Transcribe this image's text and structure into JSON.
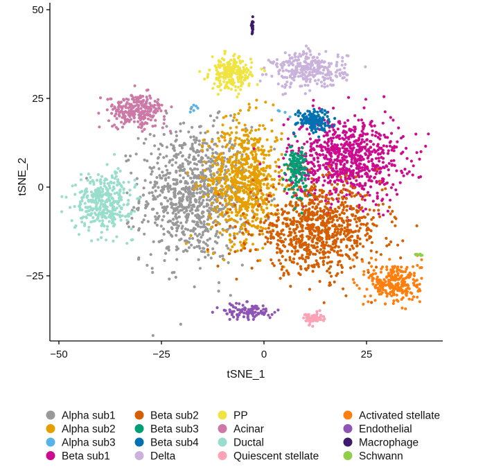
{
  "chart_data": {
    "type": "scatter",
    "title": "",
    "xlabel": "tSNE_1",
    "ylabel": "tSNE_2",
    "xlim": [
      -52,
      44
    ],
    "ylim": [
      -44,
      51
    ],
    "xticks": [
      -50,
      -25,
      0,
      25
    ],
    "yticks": [
      -25,
      0,
      25,
      50
    ],
    "xtick_labels": [
      "−50",
      "−25",
      "0",
      "25"
    ],
    "ytick_labels": [
      "−25",
      "0",
      "25",
      "50"
    ],
    "grid": false,
    "legend_position": "bottom",
    "series": [
      {
        "name": "Alpha sub1",
        "color": "#999999",
        "clusters": [
          {
            "cx": -17,
            "cy": -2,
            "sx": 6.5,
            "sy": 9.5,
            "n": 900
          }
        ]
      },
      {
        "name": "Alpha sub2",
        "color": "#E69F00",
        "clusters": [
          {
            "cx": -4.5,
            "cy": 2,
            "sx": 4.5,
            "sy": 8.5,
            "n": 700
          }
        ]
      },
      {
        "name": "Alpha sub3",
        "color": "#56B4E9",
        "clusters": [
          {
            "cx": -17,
            "cy": 22.5,
            "sx": 0.6,
            "sy": 0.6,
            "n": 6
          },
          {
            "cx": 4.5,
            "cy": 21,
            "sx": 1,
            "sy": 1,
            "n": 4
          }
        ]
      },
      {
        "name": "Beta sub1",
        "color": "#CC0B8E",
        "clusters": [
          {
            "cx": 20,
            "cy": 8,
            "sx": 7,
            "sy": 6,
            "n": 800
          }
        ]
      },
      {
        "name": "Beta sub2",
        "color": "#D55E00",
        "clusters": [
          {
            "cx": 13,
            "cy": -12,
            "sx": 8,
            "sy": 6,
            "n": 850
          }
        ]
      },
      {
        "name": "Beta sub3",
        "color": "#009E73",
        "clusters": [
          {
            "cx": 8,
            "cy": 5,
            "sx": 1.2,
            "sy": 3.5,
            "n": 130
          }
        ]
      },
      {
        "name": "Beta sub4",
        "color": "#0072B2",
        "clusters": [
          {
            "cx": 12,
            "cy": 19,
            "sx": 2,
            "sy": 1.5,
            "n": 140
          }
        ]
      },
      {
        "name": "Delta",
        "color": "#C9B2DB",
        "clusters": [
          {
            "cx": 11,
            "cy": 33,
            "sx": 4.5,
            "sy": 2.5,
            "n": 300
          }
        ]
      },
      {
        "name": "PP",
        "color": "#F0E442",
        "clusters": [
          {
            "cx": -8,
            "cy": 32,
            "sx": 2.5,
            "sy": 2.3,
            "n": 220
          }
        ]
      },
      {
        "name": "Acinar",
        "color": "#CC79A7",
        "clusters": [
          {
            "cx": -31,
            "cy": 21.5,
            "sx": 3.5,
            "sy": 2.3,
            "n": 260
          }
        ]
      },
      {
        "name": "Ductal",
        "color": "#99DDCC",
        "clusters": [
          {
            "cx": -39,
            "cy": -4,
            "sx": 3.5,
            "sy": 4,
            "n": 350
          }
        ]
      },
      {
        "name": "Quiescent stellate",
        "color": "#FCA3B7",
        "clusters": [
          {
            "cx": 12,
            "cy": -37,
            "sx": 1.2,
            "sy": 0.8,
            "n": 60
          }
        ]
      },
      {
        "name": "Activated stellate",
        "color": "#FF7F0E",
        "clusters": [
          {
            "cx": 32,
            "cy": -27,
            "sx": 3.2,
            "sy": 3,
            "n": 260
          }
        ]
      },
      {
        "name": "Endothelial",
        "color": "#8E55B5",
        "clusters": [
          {
            "cx": -4,
            "cy": -35,
            "sx": 3,
            "sy": 1.2,
            "n": 100
          }
        ]
      },
      {
        "name": "Macrophage",
        "color": "#3D1A6E",
        "clusters": [
          {
            "cx": -2.8,
            "cy": 45.5,
            "sx": 0.12,
            "sy": 1.2,
            "n": 25
          }
        ]
      },
      {
        "name": "Schwann",
        "color": "#91CF4B",
        "clusters": [
          {
            "cx": 37.5,
            "cy": -19,
            "sx": 0.6,
            "sy": 0.15,
            "n": 10
          }
        ]
      }
    ]
  }
}
